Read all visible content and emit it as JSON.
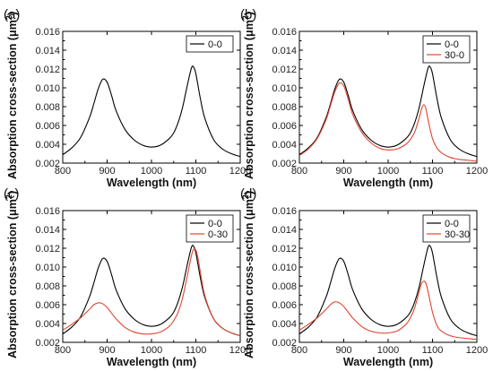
{
  "chart_data": [
    {
      "type": "line",
      "panel_label": "(a)",
      "xlabel": "Wavelength (nm)",
      "ylabel_main": "Absorption cross-section (",
      "ylabel_unit": "μm",
      "ylabel_sup": "2",
      "ylabel_end": ")",
      "xlim": [
        800,
        1200
      ],
      "ylim": [
        0.002,
        0.016
      ],
      "xticks": [
        800,
        900,
        1000,
        1100,
        1200
      ],
      "yticks": [
        "0.002",
        "0.004",
        "0.006",
        "0.008",
        "0.010",
        "0.012",
        "0.014",
        "0.016"
      ],
      "legend_position": "top-right",
      "series": [
        {
          "name": "0-0",
          "color": "#000000",
          "x": [
            800,
            820,
            840,
            860,
            870,
            880,
            890,
            900,
            910,
            920,
            940,
            960,
            980,
            1000,
            1020,
            1040,
            1050,
            1060,
            1070,
            1080,
            1090,
            1095,
            1100,
            1110,
            1120,
            1140,
            1160,
            1180,
            1200
          ],
          "y": [
            0.0029,
            0.0036,
            0.0047,
            0.0068,
            0.0083,
            0.0099,
            0.0109,
            0.0106,
            0.0092,
            0.0076,
            0.0056,
            0.0045,
            0.0039,
            0.0037,
            0.0039,
            0.0046,
            0.0052,
            0.0063,
            0.0079,
            0.0101,
            0.0121,
            0.0122,
            0.0115,
            0.0089,
            0.0068,
            0.0045,
            0.0035,
            0.003,
            0.0027
          ]
        }
      ]
    },
    {
      "type": "line",
      "panel_label": "(b)",
      "xlabel": "Wavelength (nm)",
      "ylabel_main": "Absorption cross-section (",
      "ylabel_unit": "μm",
      "ylabel_sup": "2",
      "ylabel_end": ")",
      "xlim": [
        800,
        1200
      ],
      "ylim": [
        0.002,
        0.016
      ],
      "xticks": [
        800,
        900,
        1000,
        1100,
        1200
      ],
      "yticks": [
        "0.002",
        "0.004",
        "0.006",
        "0.008",
        "0.010",
        "0.012",
        "0.014",
        "0.016"
      ],
      "legend_position": "top-right",
      "series": [
        {
          "name": "0-0",
          "color": "#000000",
          "x": [
            800,
            820,
            840,
            860,
            870,
            880,
            890,
            900,
            910,
            920,
            940,
            960,
            980,
            1000,
            1020,
            1040,
            1050,
            1060,
            1070,
            1080,
            1090,
            1095,
            1100,
            1110,
            1120,
            1140,
            1160,
            1180,
            1200
          ],
          "y": [
            0.0029,
            0.0036,
            0.0047,
            0.0068,
            0.0083,
            0.0099,
            0.0109,
            0.0106,
            0.0092,
            0.0076,
            0.0056,
            0.0045,
            0.0039,
            0.0037,
            0.0039,
            0.0046,
            0.0052,
            0.0063,
            0.0079,
            0.0101,
            0.0121,
            0.0122,
            0.0115,
            0.0089,
            0.0068,
            0.0045,
            0.0035,
            0.003,
            0.0027
          ]
        },
        {
          "name": "30-0",
          "color": "#e0452f",
          "x": [
            800,
            820,
            840,
            860,
            870,
            880,
            890,
            900,
            910,
            920,
            940,
            960,
            980,
            1000,
            1020,
            1040,
            1050,
            1060,
            1070,
            1075,
            1080,
            1085,
            1090,
            1100,
            1110,
            1120,
            1140,
            1160,
            1180,
            1200
          ],
          "y": [
            0.0028,
            0.0035,
            0.0046,
            0.0066,
            0.0081,
            0.0096,
            0.0105,
            0.0102,
            0.0088,
            0.0072,
            0.0053,
            0.0042,
            0.0036,
            0.0034,
            0.0035,
            0.004,
            0.0045,
            0.0053,
            0.0068,
            0.0077,
            0.0082,
            0.0078,
            0.0066,
            0.0046,
            0.0036,
            0.0031,
            0.0026,
            0.0024,
            0.0023,
            0.0022
          ]
        }
      ]
    },
    {
      "type": "line",
      "panel_label": "(c)",
      "xlabel": "Wavelength (nm)",
      "ylabel_main": "Absorption cross-section (",
      "ylabel_unit": "μm",
      "ylabel_sup": "2",
      "ylabel_end": ")",
      "xlim": [
        800,
        1200
      ],
      "ylim": [
        0.002,
        0.016
      ],
      "xticks": [
        800,
        900,
        1000,
        1100,
        1200
      ],
      "yticks": [
        "0.002",
        "0.004",
        "0.006",
        "0.008",
        "0.010",
        "0.012",
        "0.014",
        "0.016"
      ],
      "legend_position": "top-right",
      "series": [
        {
          "name": "0-0",
          "color": "#000000",
          "x": [
            800,
            820,
            840,
            860,
            870,
            880,
            890,
            900,
            910,
            920,
            940,
            960,
            980,
            1000,
            1020,
            1040,
            1050,
            1060,
            1070,
            1080,
            1090,
            1095,
            1100,
            1110,
            1120,
            1140,
            1160,
            1180,
            1200
          ],
          "y": [
            0.0029,
            0.0036,
            0.0047,
            0.0068,
            0.0083,
            0.0099,
            0.0109,
            0.0106,
            0.0092,
            0.0076,
            0.0056,
            0.0045,
            0.0039,
            0.0037,
            0.0039,
            0.0046,
            0.0052,
            0.0063,
            0.0079,
            0.0101,
            0.0121,
            0.0122,
            0.0115,
            0.0089,
            0.0068,
            0.0045,
            0.0035,
            0.003,
            0.0027
          ]
        },
        {
          "name": "0-30",
          "color": "#e0452f",
          "x": [
            800,
            820,
            840,
            860,
            870,
            880,
            890,
            900,
            910,
            920,
            940,
            960,
            980,
            1000,
            1020,
            1040,
            1050,
            1060,
            1070,
            1080,
            1090,
            1095,
            1100,
            1105,
            1110,
            1120,
            1140,
            1160,
            1180,
            1200
          ],
          "y": [
            0.0033,
            0.0039,
            0.0046,
            0.0055,
            0.006,
            0.0062,
            0.0061,
            0.0057,
            0.0051,
            0.0045,
            0.0036,
            0.0031,
            0.0029,
            0.0029,
            0.0031,
            0.0037,
            0.0043,
            0.0052,
            0.0067,
            0.0089,
            0.0112,
            0.0119,
            0.0118,
            0.0109,
            0.0095,
            0.007,
            0.0045,
            0.0035,
            0.003,
            0.0027
          ]
        }
      ]
    },
    {
      "type": "line",
      "panel_label": "(d)",
      "xlabel": "Wavelength (nm)",
      "ylabel_main": "Absorption cross-section (",
      "ylabel_unit": "μm",
      "ylabel_sup": "2",
      "ylabel_end": ")",
      "xlim": [
        800,
        1200
      ],
      "ylim": [
        0.002,
        0.016
      ],
      "xticks": [
        800,
        900,
        1000,
        1100,
        1200
      ],
      "yticks": [
        "0.002",
        "0.004",
        "0.006",
        "0.008",
        "0.010",
        "0.012",
        "0.014",
        "0.016"
      ],
      "legend_position": "top-right",
      "series": [
        {
          "name": "0-0",
          "color": "#000000",
          "x": [
            800,
            820,
            840,
            860,
            870,
            880,
            890,
            900,
            910,
            920,
            940,
            960,
            980,
            1000,
            1020,
            1040,
            1050,
            1060,
            1070,
            1080,
            1090,
            1095,
            1100,
            1110,
            1120,
            1140,
            1160,
            1180,
            1200
          ],
          "y": [
            0.0029,
            0.0036,
            0.0047,
            0.0068,
            0.0083,
            0.0099,
            0.0109,
            0.0106,
            0.0092,
            0.0076,
            0.0056,
            0.0045,
            0.0039,
            0.0037,
            0.0039,
            0.0046,
            0.0052,
            0.0063,
            0.0079,
            0.0101,
            0.0121,
            0.0122,
            0.0115,
            0.0089,
            0.0068,
            0.0045,
            0.0035,
            0.003,
            0.0027
          ]
        },
        {
          "name": "30-30",
          "color": "#e0452f",
          "x": [
            800,
            820,
            840,
            860,
            870,
            880,
            890,
            900,
            910,
            920,
            940,
            960,
            980,
            1000,
            1020,
            1040,
            1050,
            1060,
            1070,
            1075,
            1080,
            1085,
            1090,
            1100,
            1110,
            1120,
            1140,
            1160,
            1180,
            1200
          ],
          "y": [
            0.0033,
            0.0039,
            0.0046,
            0.0055,
            0.006,
            0.0063,
            0.0062,
            0.0058,
            0.0052,
            0.0046,
            0.0037,
            0.0032,
            0.003,
            0.003,
            0.0032,
            0.0039,
            0.0046,
            0.0057,
            0.0074,
            0.0082,
            0.0085,
            0.0083,
            0.0074,
            0.0052,
            0.0038,
            0.0032,
            0.0027,
            0.0025,
            0.0024,
            0.0023
          ]
        }
      ]
    }
  ]
}
